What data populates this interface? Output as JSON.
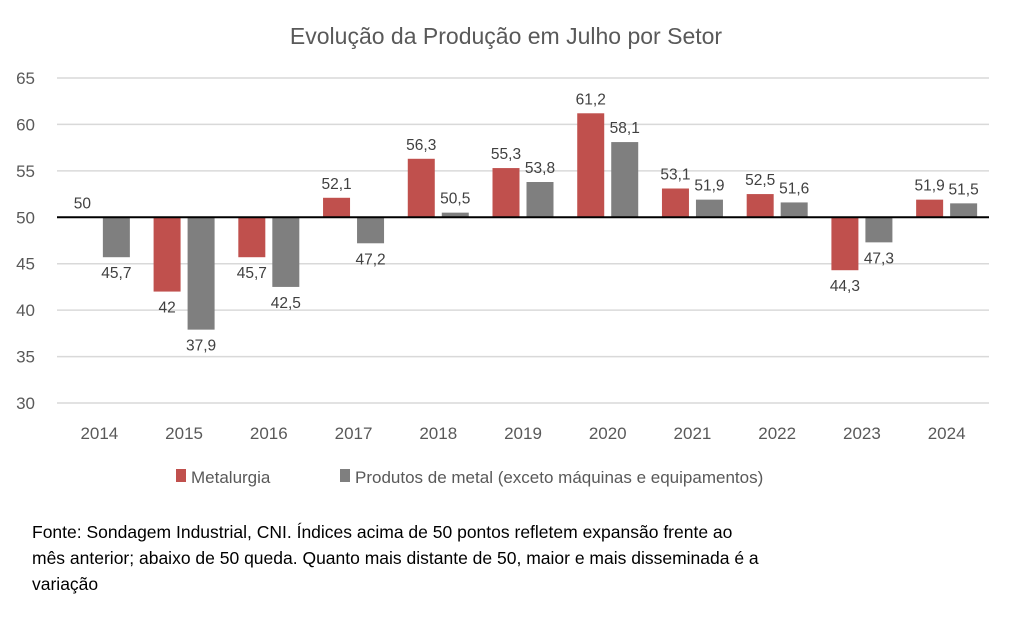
{
  "chart_data": {
    "type": "bar",
    "title": "Evolução da Produção em Julho por Setor",
    "xlabel": "",
    "ylabel": "",
    "baseline": 50,
    "ylim": [
      30,
      65
    ],
    "yticks": [
      30,
      35,
      40,
      45,
      50,
      55,
      60,
      65
    ],
    "grid": true,
    "legend_position": "bottom",
    "categories": [
      "2014",
      "2015",
      "2016",
      "2017",
      "2018",
      "2019",
      "2020",
      "2021",
      "2022",
      "2023",
      "2024"
    ],
    "series": [
      {
        "name": "Metalurgia",
        "color": "#C0504D",
        "values": [
          50,
          42,
          45.7,
          52.1,
          56.3,
          55.3,
          61.2,
          53.1,
          52.5,
          44.3,
          51.9
        ],
        "labels": [
          "50",
          "42",
          "45,7",
          "52,1",
          "56,3",
          "55,3",
          "61,2",
          "53,1",
          "52,5",
          "44,3",
          "51,9"
        ]
      },
      {
        "name": "Produtos de metal (exceto máquinas e equipamentos)",
        "color": "#7F7F7F",
        "values": [
          45.7,
          37.9,
          42.5,
          47.2,
          50.5,
          53.8,
          58.1,
          51.9,
          51.6,
          47.3,
          51.5
        ],
        "labels": [
          "45,7",
          "37,9",
          "42,5",
          "47,2",
          "50,5",
          "53,8",
          "58,1",
          "51,9",
          "51,6",
          "47,3",
          "51,5"
        ]
      }
    ]
  },
  "note": {
    "line1": "Fonte: Sondagem Industrial, CNI. Índices acima de 50 pontos refletem expansão frente ao",
    "line2": "mês anterior; abaixo de 50 queda. Quanto mais distante de 50, maior e mais disseminada é a",
    "line3": "variação"
  }
}
